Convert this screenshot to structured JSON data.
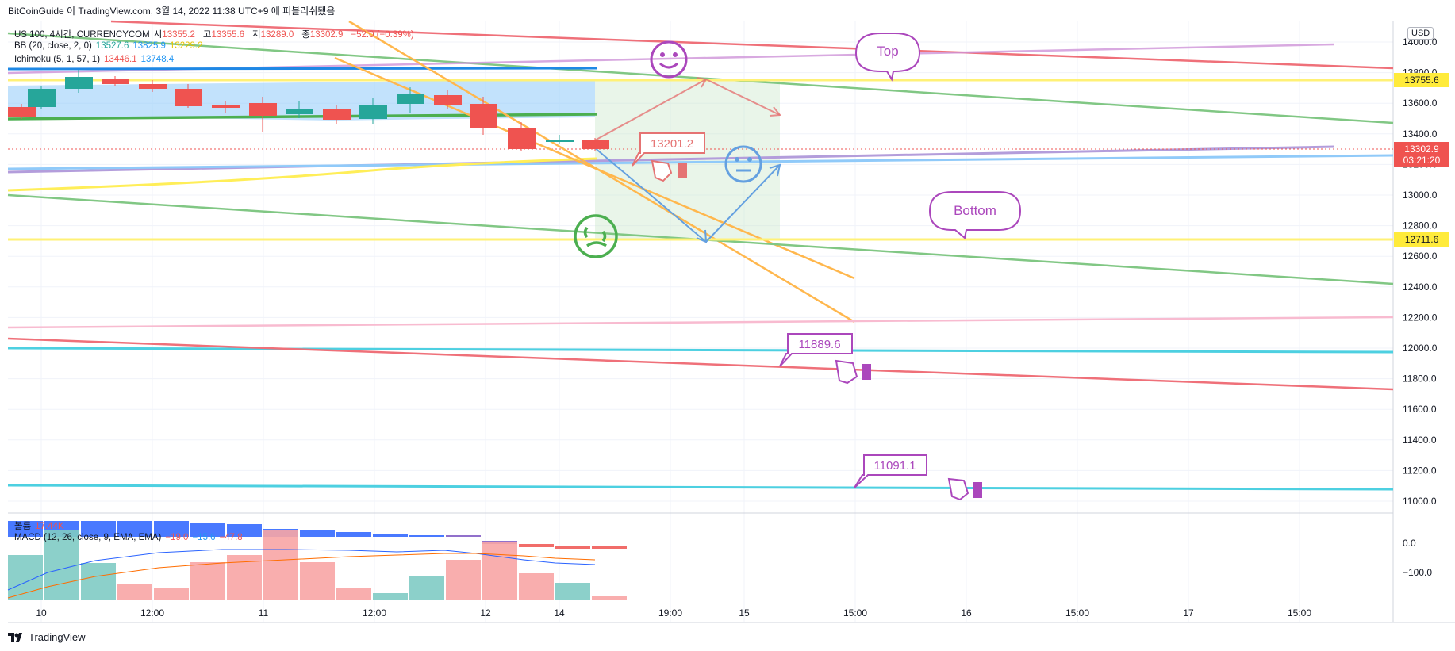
{
  "header": {
    "publisher": "BitCoinGuide 이 TradingView.com, 3월 14, 2022 11:38 UTC+9 에 퍼블리쉬됐음"
  },
  "legend": {
    "symbol": "US 100, 4시간, CURRENCYCOM",
    "o_label": "시",
    "o_val": "13355.2",
    "h_label": "고",
    "h_val": "13355.6",
    "l_label": "저",
    "l_val": "13289.0",
    "c_label": "종",
    "c_val": "13302.9",
    "change": "−52.0 (−0.39%)",
    "bb_name": "BB (20, close, 2, 0)",
    "bb_basis": "13527.6",
    "bb_upper": "13825.9",
    "bb_lower": "13229.2",
    "ich_name": "Ichimoku (5, 1, 57, 1)",
    "ich_a": "13446.1",
    "ich_b": "13748.4",
    "vol_name": "볼륨",
    "vol_val": "17.44K",
    "macd_name": "MACD (12, 26, close, 9, EMA, EMA)",
    "macd_v1": "−19.0",
    "macd_v2": "−15.6",
    "macd_v3": "−47.8"
  },
  "price_axis": {
    "currency": "USD",
    "ticks": [
      "14000.0",
      "13800.0",
      "13600.0",
      "13400.0",
      "13200.0",
      "13000.0",
      "12800.0",
      "12600.0",
      "12400.0",
      "12200.0",
      "12000.0",
      "11800.0",
      "11600.0",
      "11400.0",
      "11200.0",
      "11000.0"
    ],
    "macd_ticks": [
      "0.0",
      "−100.0"
    ],
    "label_top": "13755.6",
    "label_current": "13302.9",
    "label_countdown": "03:21:20",
    "label_bottom": "12711.6"
  },
  "time_axis": [
    "10",
    "12:00",
    "11",
    "12:00",
    "12",
    "14",
    "19:00",
    "15",
    "15:00",
    "16",
    "15:00",
    "17",
    "15:00"
  ],
  "annotations": {
    "top": "Top",
    "bottom": "Bottom",
    "price1": "13201.2",
    "price2": "11889.6",
    "price3": "11091.1"
  },
  "colors": {
    "up": "#26a69a",
    "down": "#ef5350",
    "yellow_level": "#fff176",
    "label_yellow": "#ffeb3b",
    "current_red": "#ef5350"
  },
  "footer": {
    "brand": "TradingView"
  }
}
